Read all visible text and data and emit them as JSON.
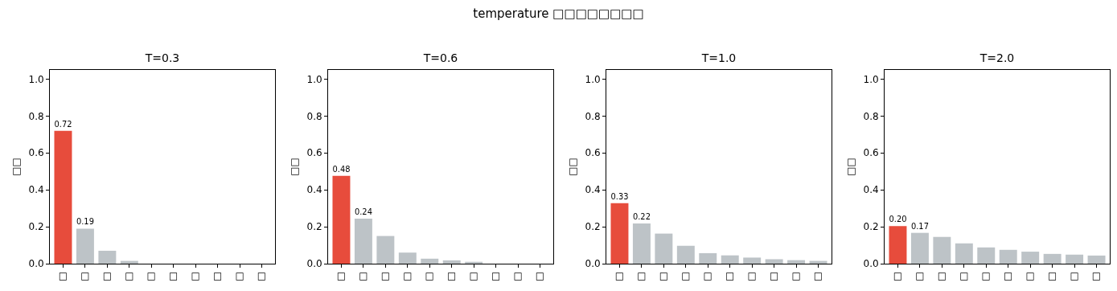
{
  "chart_data": [
    {
      "type": "bar",
      "title": "T=0.3",
      "ylabel": "□□",
      "annotations": [
        "temperature □□□□□□□□"
      ],
      "categories": [
        "□",
        "□",
        "□",
        "□",
        "□",
        "□",
        "□",
        "□",
        "□",
        "□"
      ],
      "values": [
        0.72,
        0.19,
        0.07,
        0.015,
        null,
        null,
        0,
        0,
        0,
        0
      ],
      "colors": [
        "#e74c3c",
        "#bdc3c7",
        "#bdc3c7",
        "#bdc3c7",
        "#bdc3c7",
        "#bdc3c7",
        "#bdc3c7",
        "#bdc3c7",
        "#bdc3c7",
        "#bdc3c7"
      ],
      "value_labels": [
        "0.72",
        "0.19",
        null,
        null,
        null,
        null,
        null,
        null,
        null,
        null
      ],
      "ylim": [
        0,
        1.05
      ],
      "yticks": [
        {
          "value": 0,
          "label": "0.0"
        },
        {
          "value": 0.2,
          "label": "0.2"
        },
        {
          "value": 0.4,
          "label": "0.4"
        },
        {
          "value": 0.6,
          "label": "0.6"
        },
        {
          "value": 0.8,
          "label": "0.8"
        },
        {
          "value": 1,
          "label": "1.0"
        }
      ]
    },
    {
      "type": "bar",
      "title": "T=0.6",
      "ylabel": "□□",
      "categories": [
        "□",
        "□",
        "□",
        "□",
        "□",
        "□",
        "□",
        "□",
        "□",
        "□"
      ],
      "values": [
        0.476,
        0.244,
        0.15,
        0.06,
        0.027,
        0.018,
        0.01,
        null,
        null,
        null
      ],
      "colors": [
        "#e74c3c",
        "#bdc3c7",
        "#bdc3c7",
        "#bdc3c7",
        "#bdc3c7",
        "#bdc3c7",
        "#bdc3c7",
        "#bdc3c7",
        "#bdc3c7",
        "#bdc3c7"
      ],
      "value_labels": [
        "0.48",
        "0.24",
        null,
        null,
        null,
        null,
        null,
        null,
        null,
        null
      ],
      "ylim": [
        0,
        1.05
      ],
      "yticks": [
        {
          "value": 0,
          "label": "0.0"
        },
        {
          "value": 0.2,
          "label": "0.2"
        },
        {
          "value": 0.4,
          "label": "0.4"
        },
        {
          "value": 0.6,
          "label": "0.6"
        },
        {
          "value": 0.8,
          "label": "0.8"
        },
        {
          "value": 1,
          "label": "1.0"
        }
      ]
    },
    {
      "type": "bar",
      "title": "T=1.0",
      "ylabel": "□□",
      "categories": [
        "□",
        "□",
        "□",
        "□",
        "□",
        "□",
        "□",
        "□",
        "□",
        "□"
      ],
      "values": [
        0.328,
        0.218,
        0.163,
        0.097,
        0.057,
        0.045,
        0.033,
        0.024,
        0.019,
        0.015
      ],
      "colors": [
        "#e74c3c",
        "#bdc3c7",
        "#bdc3c7",
        "#bdc3c7",
        "#bdc3c7",
        "#bdc3c7",
        "#bdc3c7",
        "#bdc3c7",
        "#bdc3c7",
        "#bdc3c7"
      ],
      "value_labels": [
        "0.33",
        "0.22",
        null,
        null,
        null,
        null,
        null,
        null,
        null,
        null
      ],
      "ylim": [
        0,
        1.05
      ],
      "yticks": [
        {
          "value": 0,
          "label": "0.0"
        },
        {
          "value": 0.2,
          "label": "0.2"
        },
        {
          "value": 0.4,
          "label": "0.4"
        },
        {
          "value": 0.6,
          "label": "0.6"
        },
        {
          "value": 0.8,
          "label": "0.8"
        },
        {
          "value": 1,
          "label": "1.0"
        }
      ]
    },
    {
      "type": "bar",
      "title": "T=2.0",
      "ylabel": "□□",
      "categories": [
        "□",
        "□",
        "□",
        "□",
        "□",
        "□",
        "□",
        "□",
        "□",
        "□"
      ],
      "values": [
        0.204,
        0.167,
        0.145,
        0.11,
        0.088,
        0.075,
        0.065,
        0.053,
        0.049,
        0.044
      ],
      "colors": [
        "#e74c3c",
        "#bdc3c7",
        "#bdc3c7",
        "#bdc3c7",
        "#bdc3c7",
        "#bdc3c7",
        "#bdc3c7",
        "#bdc3c7",
        "#bdc3c7",
        "#bdc3c7"
      ],
      "value_labels": [
        "0.20",
        "0.17",
        null,
        null,
        null,
        null,
        null,
        null,
        null,
        null
      ],
      "ylim": [
        0,
        1.05
      ],
      "yticks": [
        {
          "value": 0,
          "label": "0.0"
        },
        {
          "value": 0.2,
          "label": "0.2"
        },
        {
          "value": 0.4,
          "label": "0.4"
        },
        {
          "value": 0.6,
          "label": "0.6"
        },
        {
          "value": 0.8,
          "label": "0.8"
        },
        {
          "value": 1,
          "label": "1.0"
        }
      ]
    }
  ]
}
